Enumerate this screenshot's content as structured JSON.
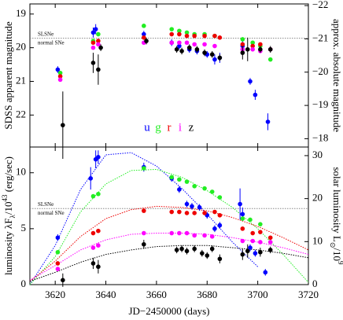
{
  "chart_data": [
    {
      "type": "scatter",
      "ylabel": "SDSS apparent magnitude",
      "y2label": "approx. absolute magnitude",
      "xlim": [
        3610,
        3720
      ],
      "xticks": [
        3620,
        3640,
        3660,
        3680,
        3700,
        3720
      ],
      "xtick_labels": false,
      "ylim": [
        22.95,
        18.7
      ],
      "yticks": [
        19,
        20,
        21,
        22
      ],
      "y2lim": [
        -17.75,
        -22.05
      ],
      "y2ticks": [
        {
          "value": -22,
          "label": "−22"
        },
        {
          "value": -21,
          "label": "−21"
        },
        {
          "value": -20,
          "label": "−20"
        },
        {
          "value": -19,
          "label": "−19"
        },
        {
          "value": -18,
          "label": "−18"
        }
      ],
      "reference": {
        "value": 19.72,
        "labels": [
          "SLSNe",
          "normal SNe"
        ]
      },
      "legend": "lower center",
      "series": [
        {
          "name": "u",
          "color": "#0000ff",
          "x": [
            3621,
            3635,
            3636,
            3655,
            3666,
            3669,
            3673,
            3676,
            3680,
            3683,
            3685,
            3694,
            3697,
            3699,
            3704
          ],
          "values": [
            20.65,
            19.55,
            19.45,
            19.6,
            19.85,
            19.95,
            20.05,
            20.1,
            20.2,
            20.35,
            20.3,
            19.95,
            21.0,
            21.4,
            22.2
          ],
          "errors": [
            0.1,
            0.15,
            0.15,
            0.1,
            0.1,
            0.1,
            0.1,
            0.1,
            0.1,
            0.15,
            0.15,
            0.2,
            0.1,
            0.15,
            0.25
          ]
        },
        {
          "name": "g",
          "color": "#22ee22",
          "x": [
            3622,
            3635,
            3637,
            3655,
            3666,
            3669,
            3672,
            3675,
            3679,
            3683,
            3694,
            3698,
            3701,
            3705
          ],
          "values": [
            20.75,
            19.8,
            19.6,
            19.35,
            19.45,
            19.5,
            19.55,
            19.6,
            19.6,
            19.65,
            19.75,
            19.85,
            19.95,
            20.35
          ]
        },
        {
          "name": "r",
          "color": "#ee0000",
          "x": [
            3622,
            3635,
            3637,
            3655,
            3666,
            3669,
            3672,
            3675,
            3679,
            3683,
            3685,
            3694,
            3698,
            3701,
            3705
          ],
          "values": [
            20.85,
            19.85,
            19.8,
            19.7,
            19.6,
            19.6,
            19.65,
            19.65,
            19.65,
            19.65,
            19.7,
            19.9,
            19.95,
            19.9,
            20.05
          ]
        },
        {
          "name": "i",
          "color": "#ff00ff",
          "x": [
            3622,
            3635,
            3637,
            3655,
            3666,
            3669,
            3672,
            3675,
            3679,
            3683,
            3694,
            3698,
            3701,
            3705
          ],
          "values": [
            20.95,
            20.0,
            19.9,
            19.85,
            19.85,
            19.85,
            19.85,
            19.9,
            19.9,
            19.95,
            20.05,
            20.05,
            20.1,
            20.05
          ]
        },
        {
          "name": "z",
          "color": "#000000",
          "x": [
            3623,
            3635,
            3637,
            3638,
            3656,
            3668,
            3670,
            3673,
            3676,
            3679,
            3682,
            3685,
            3694,
            3696,
            3701,
            3705
          ],
          "values": [
            22.3,
            20.45,
            20.65,
            20.0,
            19.8,
            20.05,
            20.1,
            20.0,
            20.05,
            20.15,
            20.2,
            20.3,
            20.15,
            20.05,
            20.05,
            20.05
          ],
          "errors": [
            1.0,
            0.3,
            0.45,
            0.1,
            0.1,
            0.1,
            0.1,
            0.1,
            0.1,
            0.1,
            0.1,
            0.1,
            0.2,
            0.35,
            0.1,
            0.1
          ]
        }
      ]
    },
    {
      "type": "scatter",
      "xlabel": "JD−2450000 (days)",
      "ylabel": [
        "luminosity λF",
        "λ",
        "/10",
        "43",
        " (erg/sec)"
      ],
      "y2label": [
        "solar luminosity L",
        "⊙",
        "/10",
        "9"
      ],
      "xlim": [
        3610,
        3720
      ],
      "xticks": [
        3620,
        3640,
        3660,
        3680,
        3700,
        3720
      ],
      "ylim": [
        0,
        12.3
      ],
      "yticks": [
        0,
        5,
        10
      ],
      "y2lim": [
        0,
        32
      ],
      "y2ticks": [
        0,
        10,
        20,
        30
      ],
      "reference": {
        "value": 6.8,
        "labels": [
          "SLSNe",
          "normal SNe"
        ]
      },
      "series": [
        {
          "color": "#0000ff",
          "x": [
            3621,
            3634,
            3636,
            3637,
            3655,
            3666,
            3669,
            3672,
            3674,
            3677,
            3680,
            3683,
            3685,
            3693,
            3694,
            3697,
            3699,
            3703
          ],
          "values": [
            4.2,
            9.5,
            11.2,
            11.4,
            10.5,
            9.5,
            8.5,
            7.2,
            7.0,
            6.9,
            6.2,
            5.0,
            5.3,
            7.2,
            6.3,
            3.3,
            2.8,
            1.1
          ],
          "errors": [
            0.3,
            1.0,
            0.8,
            0.6,
            0.4,
            0.3,
            0.3,
            0.3,
            0.3,
            0.3,
            0.3,
            0.3,
            0.3,
            1.4,
            0.6,
            0.3,
            0.3,
            0.3
          ]
        },
        {
          "color": "#22ee22",
          "x": [
            3621,
            3635,
            3637,
            3655,
            3666,
            3669,
            3672,
            3675,
            3679,
            3682,
            3685,
            3694,
            3697,
            3701,
            3705
          ],
          "values": [
            2.9,
            7.9,
            8.1,
            10.4,
            9.6,
            9.4,
            9.2,
            8.8,
            8.6,
            8.3,
            7.8,
            5.9,
            5.8,
            5.4,
            3.8
          ]
        },
        {
          "color": "#ee0000",
          "x": [
            3621,
            3635,
            3637,
            3655,
            3666,
            3669,
            3672,
            3675,
            3679,
            3683,
            3685,
            3694,
            3698,
            3701,
            3705
          ],
          "values": [
            1.9,
            4.6,
            4.8,
            6.6,
            6.5,
            6.5,
            6.4,
            6.4,
            6.4,
            6.5,
            6.2,
            5.0,
            4.6,
            4.7,
            4.2
          ]
        },
        {
          "color": "#ff00ff",
          "x": [
            3621,
            3635,
            3637,
            3655,
            3666,
            3669,
            3672,
            3675,
            3679,
            3682,
            3694,
            3698,
            3701,
            3705
          ],
          "values": [
            1.4,
            3.3,
            3.5,
            4.6,
            4.6,
            4.6,
            4.6,
            4.4,
            4.4,
            4.3,
            3.9,
            3.9,
            3.8,
            3.8
          ]
        },
        {
          "color": "#000000",
          "x": [
            3623,
            3635,
            3637,
            3655,
            3668,
            3670,
            3672,
            3675,
            3678,
            3680,
            3682,
            3685,
            3694,
            3696,
            3701,
            3705
          ],
          "values": [
            0.4,
            1.9,
            1.6,
            3.6,
            3.1,
            3.2,
            3.0,
            3.2,
            2.8,
            2.6,
            3.2,
            2.3,
            2.7,
            3.0,
            2.9,
            3.1
          ],
          "errors": [
            0.6,
            0.5,
            0.6,
            0.4,
            0.3,
            0.3,
            0.3,
            0.3,
            0.3,
            0.3,
            0.3,
            0.4,
            0.5,
            0.6,
            0.4,
            0.3
          ]
        }
      ],
      "fits": [
        {
          "color": "#0000ff",
          "x": [
            3610,
            3620,
            3630,
            3640,
            3650,
            3660,
            3670,
            3680,
            3690,
            3700,
            3710,
            3720
          ],
          "values": [
            0,
            3.5,
            8.5,
            11.6,
            11.8,
            10.6,
            8.6,
            6.3,
            3.8,
            1.6,
            null,
            null
          ]
        },
        {
          "color": "#22ee22",
          "x": [
            3610,
            3620,
            3630,
            3640,
            3650,
            3660,
            3670,
            3680,
            3690,
            3700,
            3710,
            3720
          ],
          "values": [
            0,
            2.5,
            6.5,
            9.0,
            10.2,
            10.3,
            9.6,
            8.4,
            6.9,
            5.0,
            2.7,
            0.2
          ]
        },
        {
          "color": "#ee0000",
          "x": [
            3610,
            3620,
            3630,
            3640,
            3650,
            3660,
            3670,
            3680,
            3690,
            3700,
            3710,
            3720
          ],
          "values": [
            0.3,
            2.1,
            4.3,
            5.9,
            6.7,
            7.0,
            6.9,
            6.6,
            6.0,
            5.2,
            4.2,
            3.1
          ]
        },
        {
          "color": "#ff00ff",
          "x": [
            3610,
            3620,
            3630,
            3640,
            3650,
            3660,
            3670,
            3680,
            3690,
            3700,
            3710,
            3720
          ],
          "values": [
            0.4,
            1.7,
            3.1,
            4.0,
            4.5,
            4.6,
            4.6,
            4.5,
            4.2,
            3.8,
            3.3,
            2.7
          ]
        },
        {
          "color": "#000000",
          "x": [
            3610,
            3620,
            3630,
            3640,
            3650,
            3660,
            3670,
            3680,
            3690,
            3700,
            3710,
            3720
          ],
          "values": [
            0.3,
            1.1,
            2.0,
            2.7,
            3.1,
            3.4,
            3.5,
            3.5,
            3.3,
            3.1,
            2.8,
            2.4
          ]
        }
      ]
    }
  ]
}
